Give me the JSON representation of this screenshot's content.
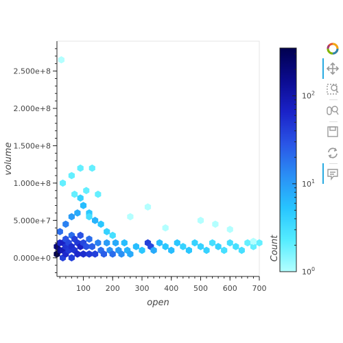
{
  "chart_data": {
    "type": "hexbin",
    "xlabel": "open",
    "ylabel": "volume",
    "xlim": [
      10,
      700
    ],
    "ylim": [
      -25000000,
      290000000
    ],
    "x_ticks": [
      100,
      200,
      300,
      400,
      500,
      600,
      700
    ],
    "x_tick_labels": [
      "100",
      "200",
      "300",
      "400",
      "500",
      "600",
      "700"
    ],
    "y_ticks": [
      0,
      50000000,
      100000000,
      150000000,
      200000000,
      250000000
    ],
    "y_tick_labels": [
      "0.000e+0",
      "5.000e+7",
      "1.000e+8",
      "1.500e+8",
      "2.000e+8",
      "2.500e+8"
    ],
    "colorbar": {
      "title": "Count",
      "scale": "log",
      "range": [
        1,
        350
      ],
      "ticks": [
        1,
        10,
        100
      ],
      "tick_bases": [
        "10",
        "10",
        "10"
      ],
      "tick_exponents": [
        "0",
        "1",
        "2"
      ],
      "palette": [
        "#b3ffff",
        "#54ecff",
        "#27c4ff",
        "#2a8ff5",
        "#2a55e6",
        "#1a22c8",
        "#0b0b8f",
        "#00004f"
      ]
    },
    "bins": [
      [
        10,
        5000000,
        350
      ],
      [
        10,
        15000000,
        200
      ],
      [
        20,
        10000000,
        150
      ],
      [
        20,
        20000000,
        60
      ],
      [
        30,
        0,
        40
      ],
      [
        30,
        10000000,
        90
      ],
      [
        30,
        20000000,
        70
      ],
      [
        40,
        5000000,
        60
      ],
      [
        40,
        15000000,
        50
      ],
      [
        40,
        25000000,
        30
      ],
      [
        50,
        10000000,
        45
      ],
      [
        50,
        20000000,
        35
      ],
      [
        60,
        0,
        40
      ],
      [
        60,
        15000000,
        55
      ],
      [
        60,
        30000000,
        20
      ],
      [
        70,
        10000000,
        50
      ],
      [
        70,
        25000000,
        40
      ],
      [
        80,
        5000000,
        60
      ],
      [
        80,
        20000000,
        45
      ],
      [
        90,
        15000000,
        70
      ],
      [
        90,
        30000000,
        30
      ],
      [
        100,
        5000000,
        55
      ],
      [
        100,
        20000000,
        35
      ],
      [
        110,
        15000000,
        30
      ],
      [
        120,
        5000000,
        45
      ],
      [
        120,
        25000000,
        20
      ],
      [
        130,
        15000000,
        25
      ],
      [
        140,
        5000000,
        40
      ],
      [
        150,
        20000000,
        15
      ],
      [
        160,
        10000000,
        20
      ],
      [
        170,
        5000000,
        25
      ],
      [
        180,
        20000000,
        10
      ],
      [
        190,
        10000000,
        12
      ],
      [
        200,
        5000000,
        20
      ],
      [
        210,
        20000000,
        8
      ],
      [
        220,
        10000000,
        10
      ],
      [
        230,
        5000000,
        12
      ],
      [
        240,
        20000000,
        6
      ],
      [
        250,
        10000000,
        7
      ],
      [
        260,
        5000000,
        8
      ],
      [
        280,
        15000000,
        6
      ],
      [
        300,
        10000000,
        5
      ],
      [
        320,
        20000000,
        40
      ],
      [
        330,
        15000000,
        35
      ],
      [
        340,
        10000000,
        8
      ],
      [
        360,
        20000000,
        6
      ],
      [
        380,
        15000000,
        5
      ],
      [
        400,
        10000000,
        6
      ],
      [
        420,
        20000000,
        5
      ],
      [
        440,
        15000000,
        4
      ],
      [
        460,
        10000000,
        5
      ],
      [
        480,
        20000000,
        4
      ],
      [
        500,
        15000000,
        4
      ],
      [
        520,
        10000000,
        4
      ],
      [
        540,
        20000000,
        3
      ],
      [
        560,
        15000000,
        4
      ],
      [
        580,
        10000000,
        3
      ],
      [
        600,
        20000000,
        3
      ],
      [
        620,
        15000000,
        3
      ],
      [
        640,
        10000000,
        3
      ],
      [
        660,
        20000000,
        2
      ],
      [
        680,
        15000000,
        2
      ],
      [
        700,
        20000000,
        2
      ],
      [
        20,
        35000000,
        20
      ],
      [
        40,
        45000000,
        15
      ],
      [
        60,
        55000000,
        10
      ],
      [
        80,
        60000000,
        8
      ],
      [
        100,
        70000000,
        6
      ],
      [
        120,
        60000000,
        5
      ],
      [
        140,
        50000000,
        7
      ],
      [
        160,
        45000000,
        5
      ],
      [
        180,
        35000000,
        4
      ],
      [
        200,
        30000000,
        3
      ],
      [
        30,
        100000000,
        2
      ],
      [
        60,
        110000000,
        2
      ],
      [
        90,
        120000000,
        2
      ],
      [
        130,
        120000000,
        2
      ],
      [
        110,
        90000000,
        2
      ],
      [
        150,
        85000000,
        2
      ],
      [
        320,
        68000000,
        1
      ],
      [
        25,
        265000000,
        1
      ],
      [
        500,
        50000000,
        1
      ],
      [
        550,
        45000000,
        1
      ],
      [
        600,
        38000000,
        1
      ],
      [
        260,
        55000000,
        1
      ],
      [
        380,
        40000000,
        1
      ],
      [
        680,
        22000000,
        1
      ],
      [
        90,
        80000000,
        4
      ],
      [
        70,
        85000000,
        2
      ],
      [
        120,
        55000000,
        3
      ]
    ]
  },
  "toolbar": {
    "logo": "bokeh-logo",
    "tools": [
      "pan-icon",
      "box-zoom-icon",
      "wheel-zoom-icon",
      "save-icon",
      "reset-icon",
      "hover-icon"
    ]
  }
}
